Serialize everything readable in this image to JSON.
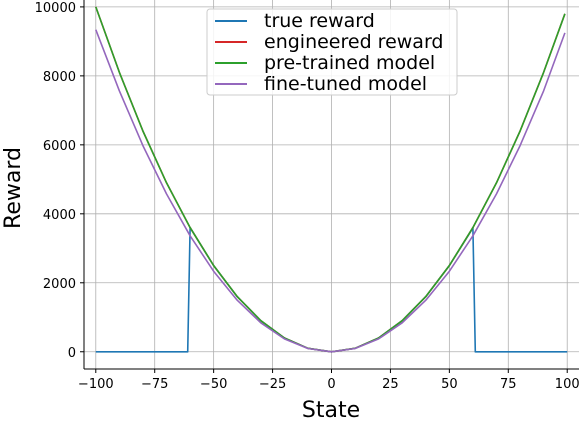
{
  "chart_data": {
    "type": "line",
    "xlabel": "State",
    "ylabel": "Reward",
    "xlim": [
      -105,
      105
    ],
    "ylim": [
      -500,
      10200
    ],
    "xticks": [
      -100,
      -75,
      -50,
      -25,
      0,
      25,
      50,
      75,
      100
    ],
    "xtick_labels": [
      "−100",
      "−75",
      "−50",
      "−25",
      "0",
      "25",
      "50",
      "75",
      "100"
    ],
    "yticks": [
      0,
      2000,
      4000,
      6000,
      8000,
      10000
    ],
    "ytick_labels": [
      "0",
      "2000",
      "4000",
      "6000",
      "8000",
      "10000"
    ],
    "grid": true,
    "legend_position": "top-center",
    "series": [
      {
        "name": "true reward",
        "color": "#1f77b4",
        "x": [
          -100,
          -61,
          -60,
          -50,
          -40,
          -30,
          -20,
          -10,
          0,
          10,
          20,
          30,
          40,
          50,
          59,
          60,
          61,
          100
        ],
        "y": [
          0,
          0,
          3600,
          2500,
          1600,
          900,
          400,
          100,
          0,
          100,
          400,
          900,
          1600,
          2500,
          3481,
          3600,
          0,
          0
        ]
      },
      {
        "name": "engineered reward",
        "color": "#d62728",
        "x": [
          -100,
          -90,
          -80,
          -70,
          -60,
          -50,
          -40,
          -30,
          -20,
          -10,
          0,
          10,
          20,
          30,
          40,
          50,
          60,
          70,
          80,
          90,
          99
        ],
        "y": [
          10000,
          8100,
          6400,
          4900,
          3600,
          2500,
          1600,
          900,
          400,
          100,
          0,
          100,
          400,
          900,
          1600,
          2500,
          3600,
          4900,
          6400,
          8100,
          9801
        ]
      },
      {
        "name": "pre-trained model",
        "color": "#2ca02c",
        "x": [
          -100,
          -90,
          -80,
          -70,
          -60,
          -50,
          -40,
          -30,
          -20,
          -10,
          0,
          10,
          20,
          30,
          40,
          50,
          60,
          70,
          80,
          90,
          99
        ],
        "y": [
          10000,
          8100,
          6400,
          4900,
          3600,
          2500,
          1600,
          900,
          400,
          100,
          0,
          100,
          400,
          900,
          1600,
          2500,
          3600,
          4900,
          6400,
          8100,
          9801
        ]
      },
      {
        "name": "fine-tuned model",
        "color": "#9467bd",
        "x": [
          -100,
          -90,
          -80,
          -70,
          -60,
          -50,
          -40,
          -30,
          -20,
          -10,
          0,
          10,
          20,
          30,
          40,
          50,
          60,
          70,
          80,
          90,
          99
        ],
        "y": [
          9340,
          7565,
          5978,
          4577,
          3362,
          2335,
          1494,
          841,
          374,
          93,
          0,
          93,
          374,
          841,
          1494,
          2335,
          3362,
          4577,
          5978,
          7565,
          9245
        ]
      }
    ]
  }
}
